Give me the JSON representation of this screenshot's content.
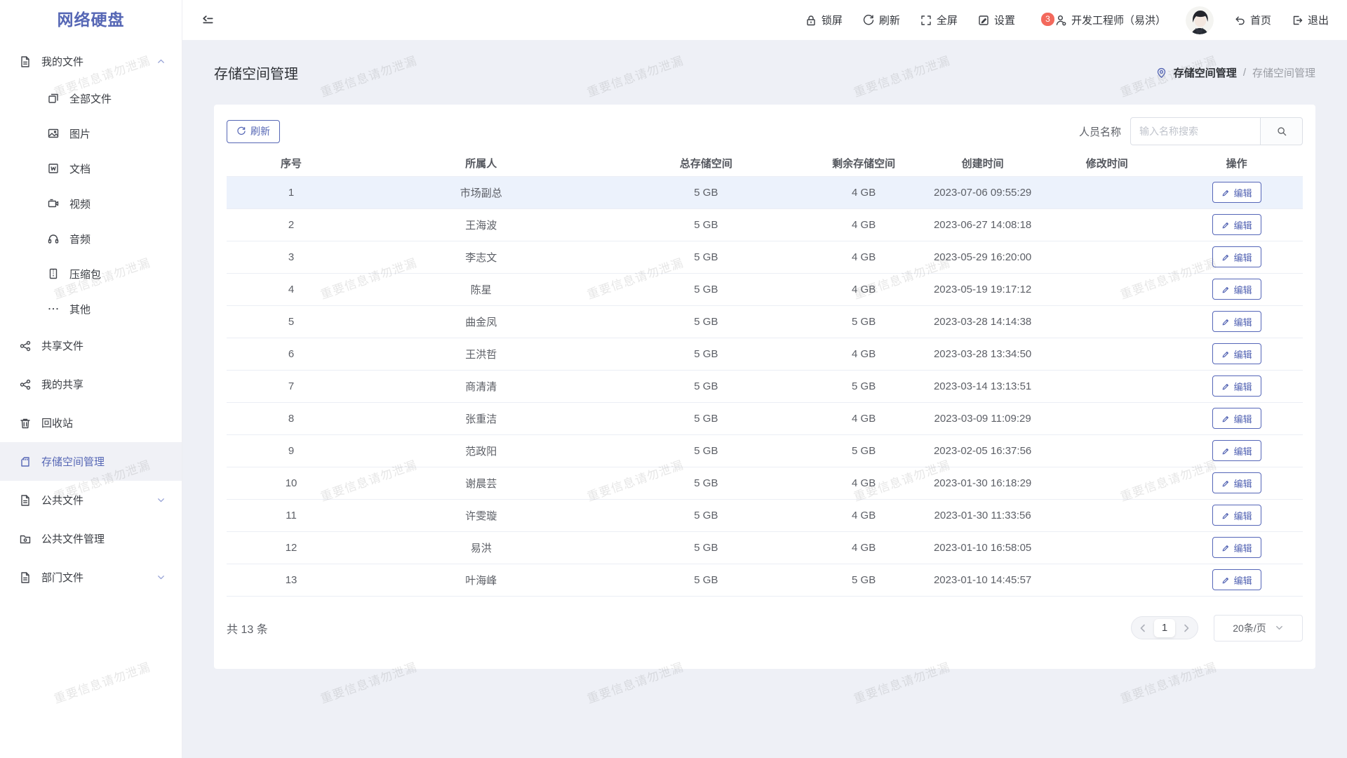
{
  "app": {
    "logo": "网络硬盘"
  },
  "topbar": {
    "lock_label": "锁屏",
    "refresh_label": "刷新",
    "fullscreen_label": "全屏",
    "settings_label": "设置",
    "notification_count": "3",
    "user_name": "开发工程师（易洪）",
    "home_label": "首页",
    "logout_label": "退出"
  },
  "sidebar": {
    "items": [
      {
        "label": "我的文件"
      },
      {
        "label": "全部文件"
      },
      {
        "label": "图片"
      },
      {
        "label": "文档"
      },
      {
        "label": "视频"
      },
      {
        "label": "音频"
      },
      {
        "label": "压缩包"
      },
      {
        "label": "其他"
      },
      {
        "label": "共享文件"
      },
      {
        "label": "我的共享"
      },
      {
        "label": "回收站"
      },
      {
        "label": "存储空间管理"
      },
      {
        "label": "公共文件"
      },
      {
        "label": "公共文件管理"
      },
      {
        "label": "部门文件"
      }
    ]
  },
  "page": {
    "title": "存储空间管理",
    "breadcrumb": {
      "root": "存储空间管理",
      "separator": "/",
      "current": "存储空间管理"
    }
  },
  "toolbar": {
    "refresh_label": "刷新",
    "search_label": "人员名称",
    "search_placeholder": "输入名称搜索"
  },
  "table": {
    "columns": [
      "序号",
      "所属人",
      "总存储空间",
      "剩余存储空间",
      "创建时间",
      "修改时间",
      "操作"
    ],
    "edit_label": "编辑",
    "rows": [
      {
        "no": "1",
        "owner": "市场副总",
        "total": "5 GB",
        "free": "4 GB",
        "created": "2023-07-06 09:55:29",
        "modified": ""
      },
      {
        "no": "2",
        "owner": "王海波",
        "total": "5 GB",
        "free": "4 GB",
        "created": "2023-06-27 14:08:18",
        "modified": ""
      },
      {
        "no": "3",
        "owner": "李志文",
        "total": "5 GB",
        "free": "4 GB",
        "created": "2023-05-29 16:20:00",
        "modified": ""
      },
      {
        "no": "4",
        "owner": "陈星",
        "total": "5 GB",
        "free": "4 GB",
        "created": "2023-05-19 19:17:12",
        "modified": ""
      },
      {
        "no": "5",
        "owner": "曲金凤",
        "total": "5 GB",
        "free": "5 GB",
        "created": "2023-03-28 14:14:38",
        "modified": ""
      },
      {
        "no": "6",
        "owner": "王洪哲",
        "total": "5 GB",
        "free": "4 GB",
        "created": "2023-03-28 13:34:50",
        "modified": ""
      },
      {
        "no": "7",
        "owner": "商清清",
        "total": "5 GB",
        "free": "5 GB",
        "created": "2023-03-14 13:13:51",
        "modified": ""
      },
      {
        "no": "8",
        "owner": "张重洁",
        "total": "5 GB",
        "free": "4 GB",
        "created": "2023-03-09 11:09:29",
        "modified": ""
      },
      {
        "no": "9",
        "owner": "范政阳",
        "total": "5 GB",
        "free": "5 GB",
        "created": "2023-02-05 16:37:56",
        "modified": ""
      },
      {
        "no": "10",
        "owner": "谢晨芸",
        "total": "5 GB",
        "free": "4 GB",
        "created": "2023-01-30 16:18:29",
        "modified": ""
      },
      {
        "no": "11",
        "owner": "许雯璇",
        "total": "5 GB",
        "free": "4 GB",
        "created": "2023-01-30 11:33:56",
        "modified": ""
      },
      {
        "no": "12",
        "owner": "易洪",
        "total": "5 GB",
        "free": "4 GB",
        "created": "2023-01-10 16:58:05",
        "modified": ""
      },
      {
        "no": "13",
        "owner": "叶海峰",
        "total": "5 GB",
        "free": "5 GB",
        "created": "2023-01-10 14:45:57",
        "modified": ""
      }
    ]
  },
  "pagination": {
    "total_text": "共 13 条",
    "current_page": "1",
    "page_size": "20条/页"
  },
  "watermark": {
    "text": "重要信息请勿泄漏"
  },
  "colors": {
    "primary": "#5667b5",
    "badge": "#f3695c",
    "page_background": "#eef0f6",
    "row_highlight": "#ecf2fc"
  }
}
